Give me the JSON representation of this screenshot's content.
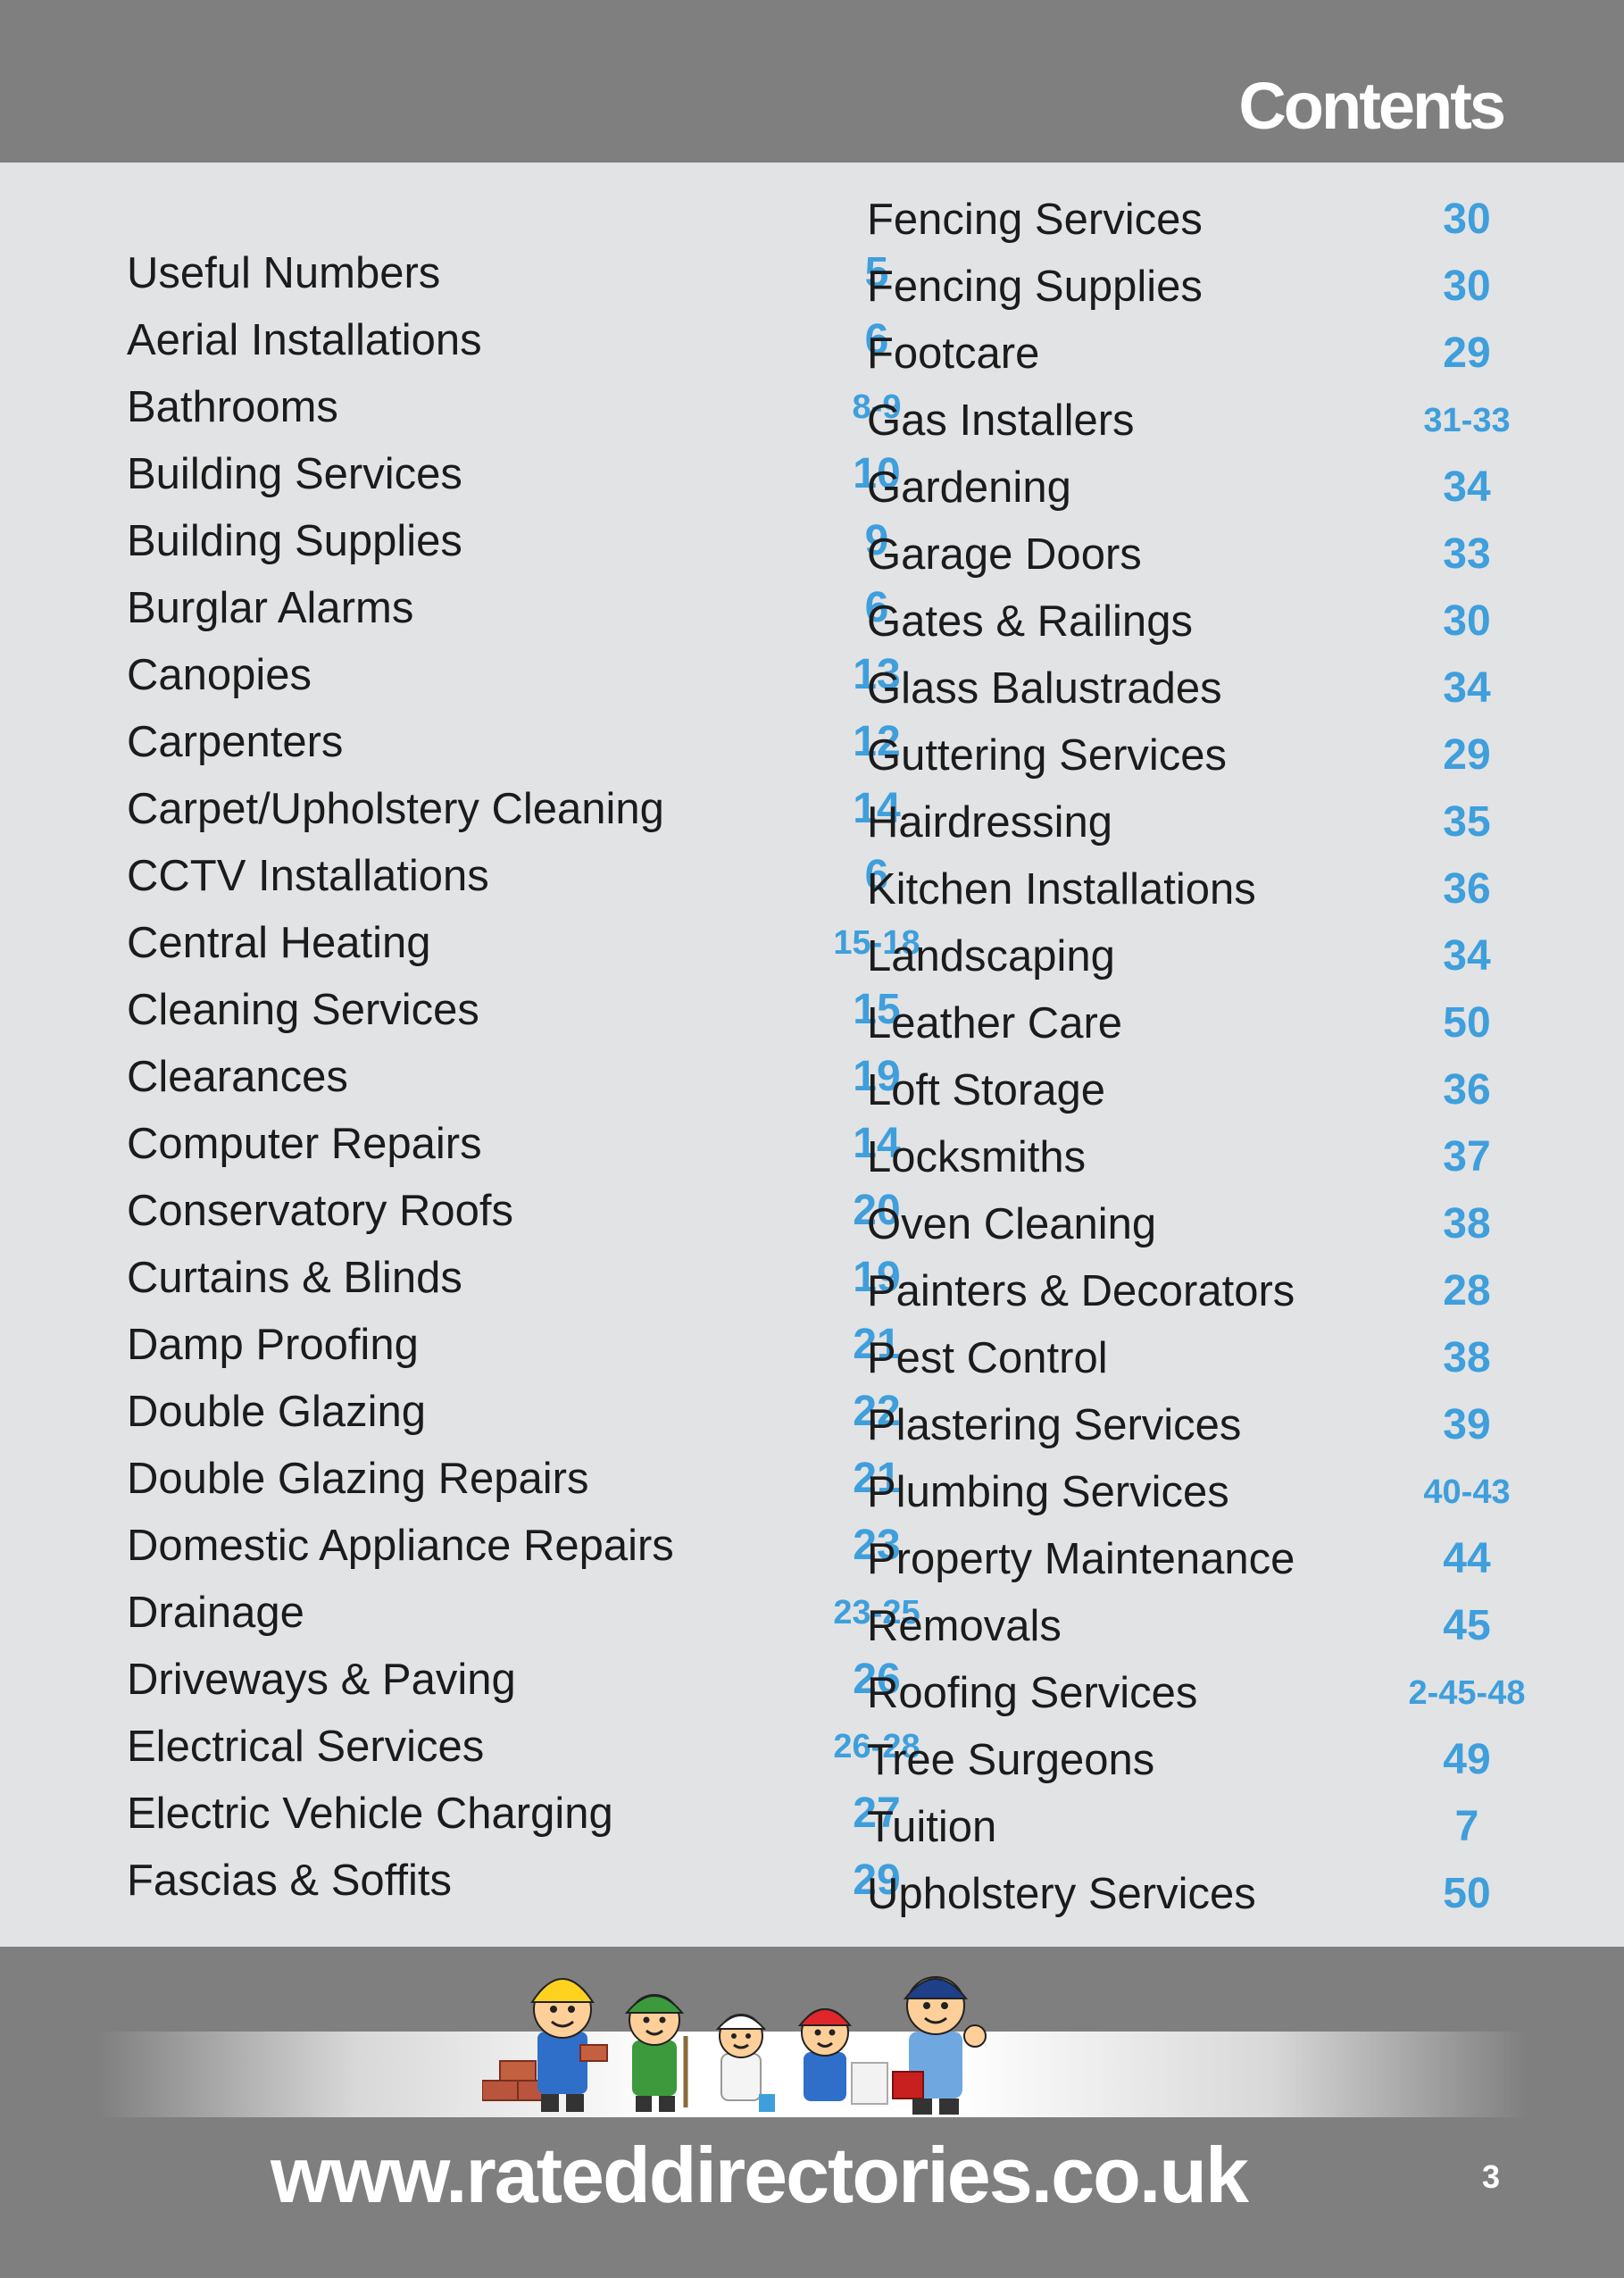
{
  "header": {
    "title": "Contents"
  },
  "left_entries": [
    {
      "label": "Useful Numbers",
      "page": "5"
    },
    {
      "label": "Aerial Installations",
      "page": "6"
    },
    {
      "label": "Bathrooms",
      "page": "8-9"
    },
    {
      "label": "Building Services",
      "page": "10"
    },
    {
      "label": "Building Supplies",
      "page": "9"
    },
    {
      "label": "Burglar Alarms",
      "page": "6"
    },
    {
      "label": "Canopies",
      "page": "13"
    },
    {
      "label": "Carpenters",
      "page": "12"
    },
    {
      "label": "Carpet/Upholstery Cleaning",
      "page": "14"
    },
    {
      "label": "CCTV Installations",
      "page": "6"
    },
    {
      "label": "Central Heating",
      "page": "15-18"
    },
    {
      "label": "Cleaning Services",
      "page": "15"
    },
    {
      "label": "Clearances",
      "page": "19"
    },
    {
      "label": "Computer Repairs",
      "page": "14"
    },
    {
      "label": "Conservatory Roofs",
      "page": "20"
    },
    {
      "label": "Curtains & Blinds",
      "page": "19"
    },
    {
      "label": "Damp Proofing",
      "page": "21"
    },
    {
      "label": "Double Glazing",
      "page": "22"
    },
    {
      "label": "Double Glazing Repairs",
      "page": "21"
    },
    {
      "label": "Domestic Appliance Repairs",
      "page": "23"
    },
    {
      "label": "Drainage",
      "page": "23-25"
    },
    {
      "label": "Driveways & Paving",
      "page": "26"
    },
    {
      "label": "Electrical Services",
      "page": "26-28"
    },
    {
      "label": "Electric Vehicle Charging",
      "page": "27"
    },
    {
      "label": "Fascias & Soffits",
      "page": "29"
    }
  ],
  "right_entries": [
    {
      "label": "Fencing Services",
      "page": "30"
    },
    {
      "label": "Fencing Supplies",
      "page": "30"
    },
    {
      "label": "Footcare",
      "page": "29"
    },
    {
      "label": "Gas Installers",
      "page": "31-33"
    },
    {
      "label": "Gardening",
      "page": "34"
    },
    {
      "label": "Garage Doors",
      "page": "33"
    },
    {
      "label": "Gates & Railings",
      "page": "30"
    },
    {
      "label": "Glass Balustrades",
      "page": "34"
    },
    {
      "label": "Guttering Services",
      "page": "29"
    },
    {
      "label": "Hairdressing",
      "page": "35"
    },
    {
      "label": "Kitchen Installations",
      "page": "36"
    },
    {
      "label": "Landscaping",
      "page": "34"
    },
    {
      "label": "Leather Care",
      "page": "50"
    },
    {
      "label": "Loft Storage",
      "page": "36"
    },
    {
      "label": "Locksmiths",
      "page": "37"
    },
    {
      "label": "Oven Cleaning",
      "page": "38"
    },
    {
      "label": "Painters & Decorators",
      "page": "28"
    },
    {
      "label": "Pest Control",
      "page": "38"
    },
    {
      "label": "Plastering Services",
      "page": "39"
    },
    {
      "label": "Plumbing Services",
      "page": "40-43"
    },
    {
      "label": "Property Maintenance",
      "page": "44"
    },
    {
      "label": "Removals",
      "page": "45"
    },
    {
      "label": "Roofing Services",
      "page": "2-45-48"
    },
    {
      "label": "Tree Surgeons",
      "page": "49"
    },
    {
      "label": "Tuition",
      "page": "7"
    },
    {
      "label": "Upholstery Services",
      "page": "50"
    }
  ],
  "footer": {
    "url": "www.rateddirectories.co.uk",
    "page_number": "3"
  },
  "colors": {
    "header_bg": "#7f7f7f",
    "page_bg": "#e2e3e5",
    "page_number_blue": "#3e9fdc",
    "label_text": "#1b1b1b"
  },
  "icons": [
    "builder-mascot-icon",
    "gardener-mascot-icon",
    "painter-mascot-icon",
    "plumber-mascot-icon",
    "handyman-mascot-icon"
  ]
}
